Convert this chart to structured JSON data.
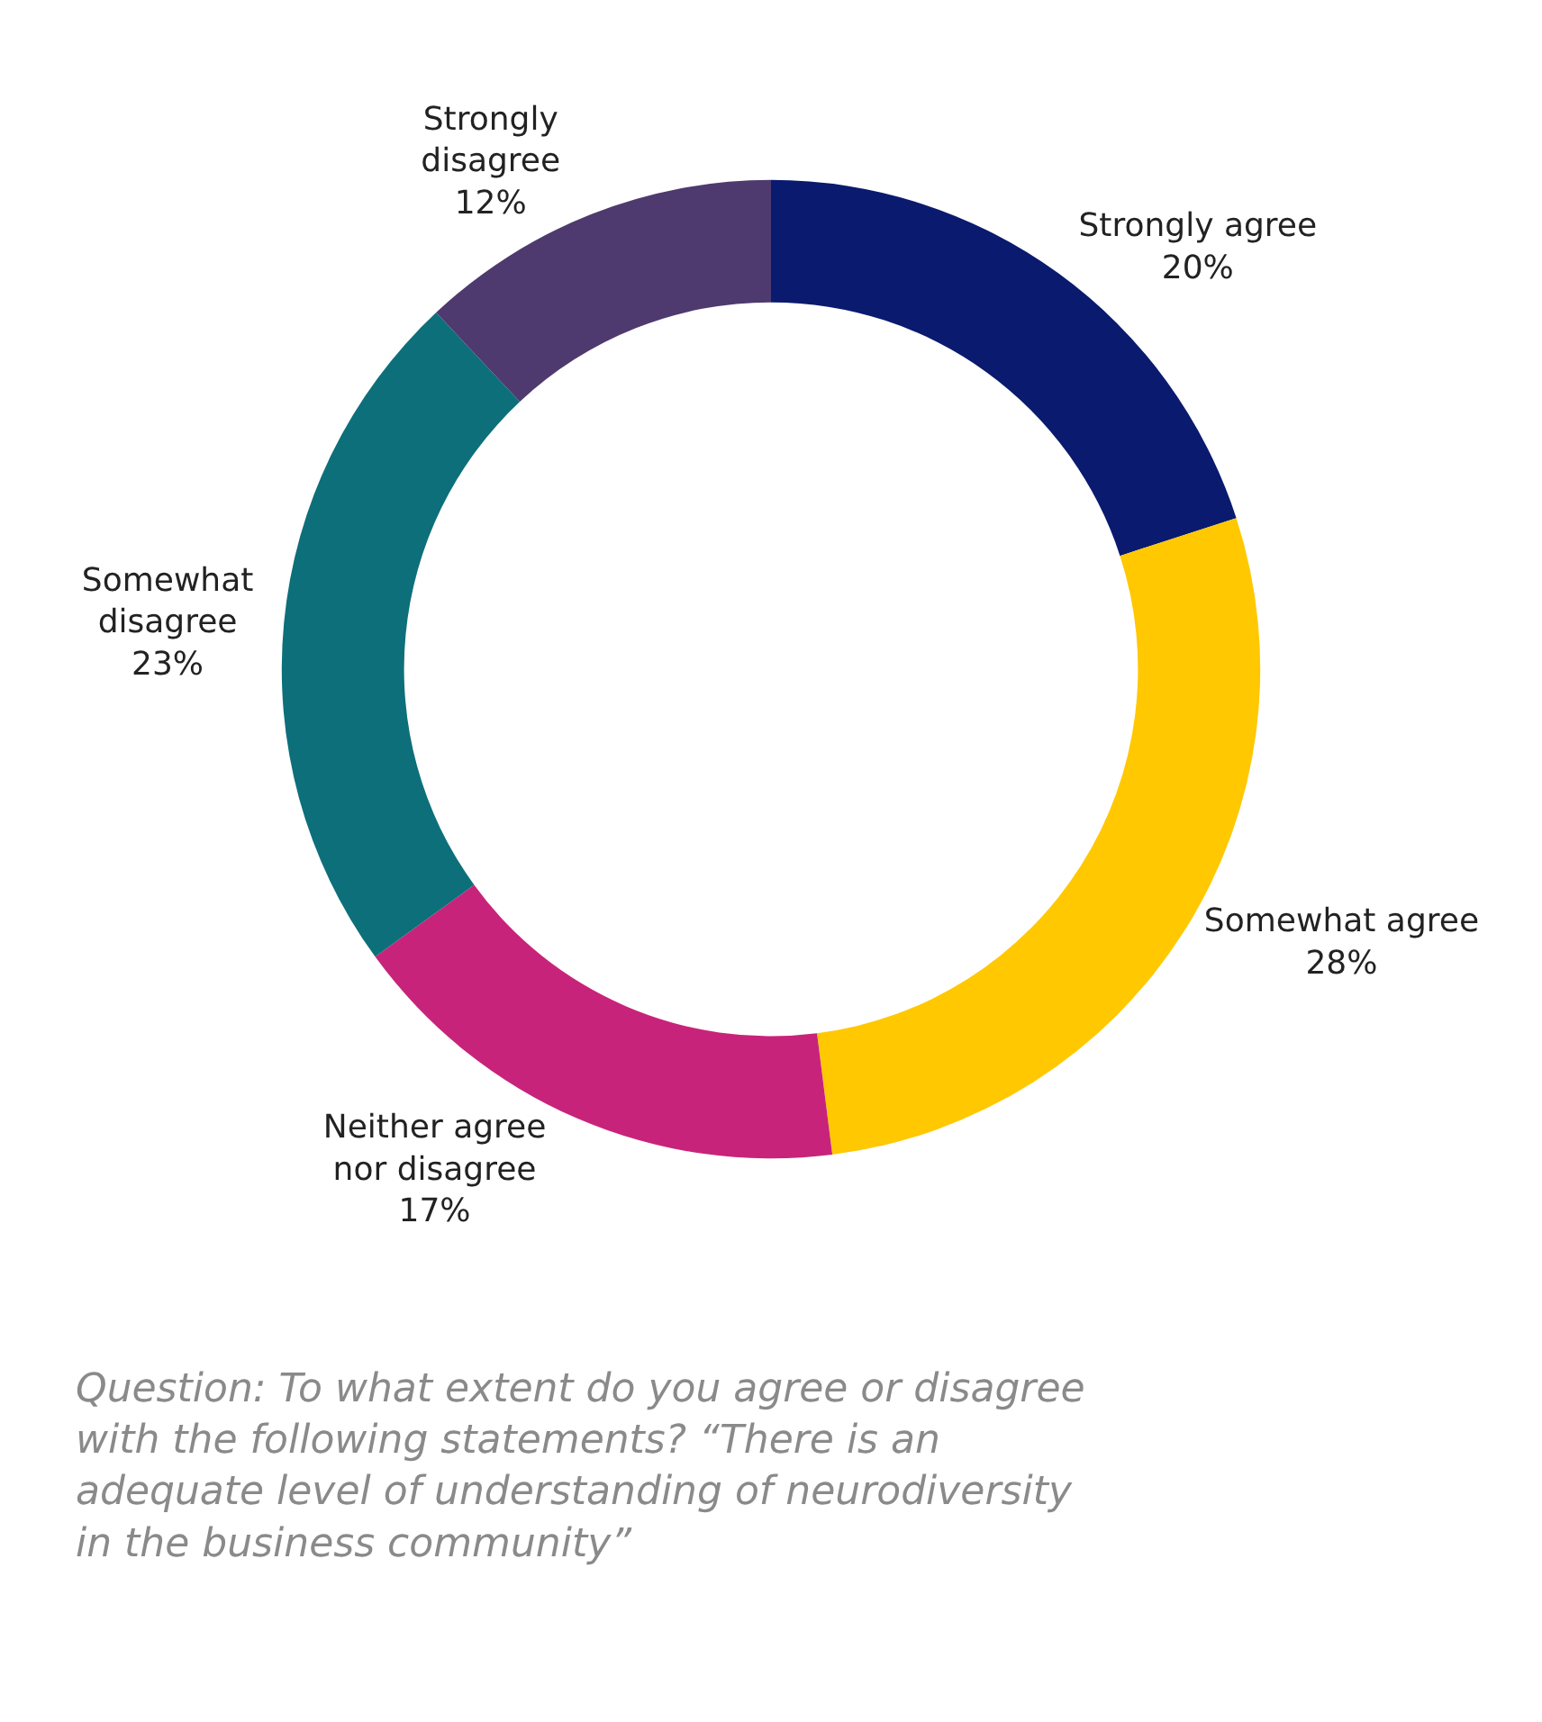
{
  "chart_data": {
    "type": "donut",
    "categories": [
      "Strongly agree",
      "Somewhat agree",
      "Neither agree nor disagree",
      "Somewhat disagree",
      "Strongly disagree"
    ],
    "values": [
      20,
      28,
      17,
      23,
      12
    ],
    "value_labels": [
      "20%",
      "28%",
      "17%",
      "23%",
      "12%"
    ],
    "colors": [
      "#0a1a6e",
      "#ffc800",
      "#c8237a",
      "#0d6f7a",
      "#4e3a6e"
    ],
    "legend": false,
    "annotations": [
      "Question: To what extent do you agree or disagree with the following statements? “There is an adequate level of understanding of neurodiversity in the business community”"
    ]
  }
}
